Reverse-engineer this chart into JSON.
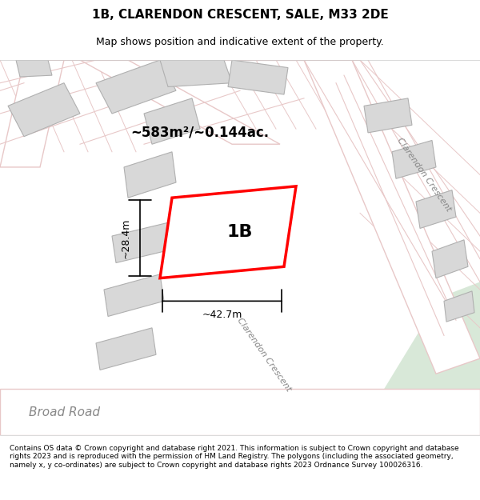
{
  "title": "1B, CLARENDON CRESCENT, SALE, M33 2DE",
  "subtitle": "Map shows position and indicative extent of the property.",
  "footer": "Contains OS data © Crown copyright and database right 2021. This information is subject to Crown copyright and database rights 2023 and is reproduced with the permission of HM Land Registry. The polygons (including the associated geometry, namely x, y co-ordinates) are subject to Crown copyright and database rights 2023 Ordnance Survey 100026316.",
  "bg_color": "#f0ede8",
  "road_color": "#ffffff",
  "road_outline_color": "#e8c8c8",
  "building_color": "#d8d8d8",
  "building_outline_color": "#c8c8c8",
  "plot_color": "#ffffff",
  "plot_outline_color": "#ff0000",
  "green_area_color": "#d8e8d8",
  "main_plot_label": "1B",
  "area_label": "~583m²/~0.144ac.",
  "width_label": "~42.7m",
  "height_label": "~28.4m",
  "road1_label": "Broad Road",
  "road2_label": "Clarendon Crescent",
  "road3_label": "Clarendon Crescent"
}
